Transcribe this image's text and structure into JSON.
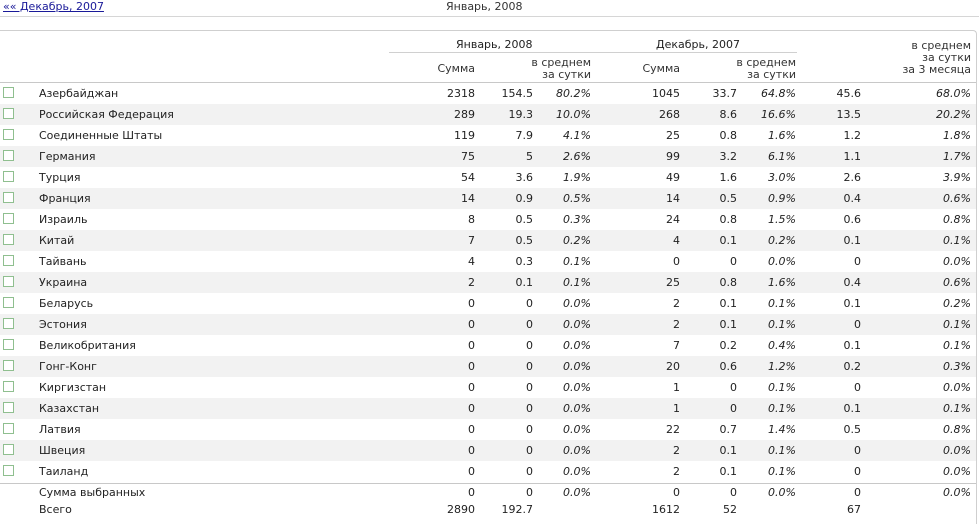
{
  "nav": {
    "prev_link": "«« Декабрь, 2007",
    "current": "Январь, 2008"
  },
  "header": {
    "group1": "Январь, 2008",
    "group2": "Декабрь, 2007",
    "sum": "Сумма",
    "avg_line1": "в среднем",
    "avg_line2": "за сутки",
    "avg3_line3": "за 3 месяца"
  },
  "rows": [
    {
      "name": "Азербайджан",
      "jan_sum": "2318",
      "jan_avg": "154.5",
      "jan_pct": "80.2%",
      "dec_sum": "1045",
      "dec_avg": "33.7",
      "dec_pct": "64.8%",
      "avg3": "45.6",
      "pct3": "68.0%"
    },
    {
      "name": "Российская Федерация",
      "jan_sum": "289",
      "jan_avg": "19.3",
      "jan_pct": "10.0%",
      "dec_sum": "268",
      "dec_avg": "8.6",
      "dec_pct": "16.6%",
      "avg3": "13.5",
      "pct3": "20.2%"
    },
    {
      "name": "Соединенные Штаты",
      "jan_sum": "119",
      "jan_avg": "7.9",
      "jan_pct": "4.1%",
      "dec_sum": "25",
      "dec_avg": "0.8",
      "dec_pct": "1.6%",
      "avg3": "1.2",
      "pct3": "1.8%"
    },
    {
      "name": "Германия",
      "jan_sum": "75",
      "jan_avg": "5",
      "jan_pct": "2.6%",
      "dec_sum": "99",
      "dec_avg": "3.2",
      "dec_pct": "6.1%",
      "avg3": "1.1",
      "pct3": "1.7%"
    },
    {
      "name": "Турция",
      "jan_sum": "54",
      "jan_avg": "3.6",
      "jan_pct": "1.9%",
      "dec_sum": "49",
      "dec_avg": "1.6",
      "dec_pct": "3.0%",
      "avg3": "2.6",
      "pct3": "3.9%"
    },
    {
      "name": "Франция",
      "jan_sum": "14",
      "jan_avg": "0.9",
      "jan_pct": "0.5%",
      "dec_sum": "14",
      "dec_avg": "0.5",
      "dec_pct": "0.9%",
      "avg3": "0.4",
      "pct3": "0.6%"
    },
    {
      "name": "Израиль",
      "jan_sum": "8",
      "jan_avg": "0.5",
      "jan_pct": "0.3%",
      "dec_sum": "24",
      "dec_avg": "0.8",
      "dec_pct": "1.5%",
      "avg3": "0.6",
      "pct3": "0.8%"
    },
    {
      "name": "Китай",
      "jan_sum": "7",
      "jan_avg": "0.5",
      "jan_pct": "0.2%",
      "dec_sum": "4",
      "dec_avg": "0.1",
      "dec_pct": "0.2%",
      "avg3": "0.1",
      "pct3": "0.1%"
    },
    {
      "name": "Тайвань",
      "jan_sum": "4",
      "jan_avg": "0.3",
      "jan_pct": "0.1%",
      "dec_sum": "0",
      "dec_avg": "0",
      "dec_pct": "0.0%",
      "avg3": "0",
      "pct3": "0.0%"
    },
    {
      "name": "Украина",
      "jan_sum": "2",
      "jan_avg": "0.1",
      "jan_pct": "0.1%",
      "dec_sum": "25",
      "dec_avg": "0.8",
      "dec_pct": "1.6%",
      "avg3": "0.4",
      "pct3": "0.6%"
    },
    {
      "name": "Беларусь",
      "jan_sum": "0",
      "jan_avg": "0",
      "jan_pct": "0.0%",
      "dec_sum": "2",
      "dec_avg": "0.1",
      "dec_pct": "0.1%",
      "avg3": "0.1",
      "pct3": "0.2%"
    },
    {
      "name": "Эстония",
      "jan_sum": "0",
      "jan_avg": "0",
      "jan_pct": "0.0%",
      "dec_sum": "2",
      "dec_avg": "0.1",
      "dec_pct": "0.1%",
      "avg3": "0",
      "pct3": "0.1%"
    },
    {
      "name": "Великобритания",
      "jan_sum": "0",
      "jan_avg": "0",
      "jan_pct": "0.0%",
      "dec_sum": "7",
      "dec_avg": "0.2",
      "dec_pct": "0.4%",
      "avg3": "0.1",
      "pct3": "0.1%"
    },
    {
      "name": "Гонг-Конг",
      "jan_sum": "0",
      "jan_avg": "0",
      "jan_pct": "0.0%",
      "dec_sum": "20",
      "dec_avg": "0.6",
      "dec_pct": "1.2%",
      "avg3": "0.2",
      "pct3": "0.3%"
    },
    {
      "name": "Киргизстан",
      "jan_sum": "0",
      "jan_avg": "0",
      "jan_pct": "0.0%",
      "dec_sum": "1",
      "dec_avg": "0",
      "dec_pct": "0.1%",
      "avg3": "0",
      "pct3": "0.0%"
    },
    {
      "name": "Казахстан",
      "jan_sum": "0",
      "jan_avg": "0",
      "jan_pct": "0.0%",
      "dec_sum": "1",
      "dec_avg": "0",
      "dec_pct": "0.1%",
      "avg3": "0.1",
      "pct3": "0.1%"
    },
    {
      "name": "Латвия",
      "jan_sum": "0",
      "jan_avg": "0",
      "jan_pct": "0.0%",
      "dec_sum": "22",
      "dec_avg": "0.7",
      "dec_pct": "1.4%",
      "avg3": "0.5",
      "pct3": "0.8%"
    },
    {
      "name": "Швеция",
      "jan_sum": "0",
      "jan_avg": "0",
      "jan_pct": "0.0%",
      "dec_sum": "2",
      "dec_avg": "0.1",
      "dec_pct": "0.1%",
      "avg3": "0",
      "pct3": "0.0%"
    },
    {
      "name": "Таиланд",
      "jan_sum": "0",
      "jan_avg": "0",
      "jan_pct": "0.0%",
      "dec_sum": "2",
      "dec_avg": "0.1",
      "dec_pct": "0.1%",
      "avg3": "0",
      "pct3": "0.0%"
    }
  ],
  "footer": {
    "selected": {
      "name": "Сумма выбранных",
      "jan_sum": "0",
      "jan_avg": "0",
      "jan_pct": "0.0%",
      "dec_sum": "0",
      "dec_avg": "0",
      "dec_pct": "0.0%",
      "avg3": "0",
      "pct3": "0.0%"
    },
    "total": {
      "name": "Всего",
      "jan_sum": "2890",
      "jan_avg": "192.7",
      "dec_sum": "1612",
      "dec_avg": "52",
      "avg3": "67"
    }
  }
}
